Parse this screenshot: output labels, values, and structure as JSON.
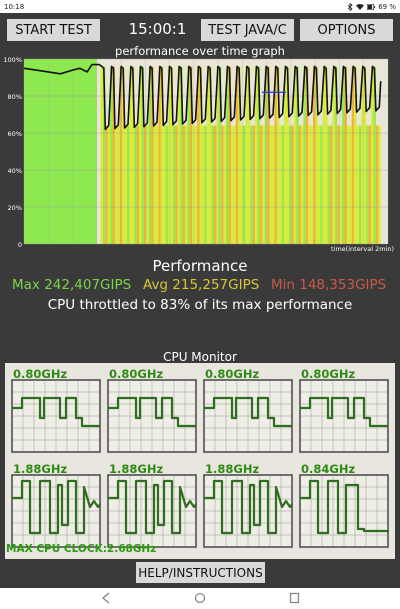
{
  "status_bar": {
    "time": "10:18",
    "battery": "69 %",
    "icons": [
      "bluetooth-icon",
      "wifi-icon",
      "battery-icon"
    ]
  },
  "toolbar": {
    "start_test_label": "START TEST",
    "timer": "15:00:1",
    "test_java_label": "TEST JAVA/C",
    "options_label": "OPTIONS"
  },
  "graph": {
    "title": "performance over time graph",
    "y_ticks": [
      "100%",
      "80%",
      "60%",
      "40%",
      "20%",
      "0"
    ],
    "x_caption": "time(interval 2min)"
  },
  "chart_data": {
    "type": "line",
    "title": "performance over time graph",
    "xlabel": "time(interval 2min)",
    "ylabel": "",
    "ylim": [
      0,
      100
    ],
    "grid": true,
    "x_range": [
      0,
      15
    ],
    "warm_phase_end": 3.0,
    "series": [
      {
        "x": [
          0,
          0.5,
          1.0,
          1.5,
          2.0,
          2.3,
          2.6,
          2.8,
          3.0,
          3.05,
          3.1
        ],
        "y": [
          95,
          94,
          93,
          92,
          94,
          95,
          93,
          97,
          97,
          97,
          97
        ]
      }
    ],
    "throttle_cycles": {
      "start": 3.15,
      "end": 14.7,
      "count": 29,
      "high": 96,
      "low": 62,
      "low_end": 72
    },
    "colors": {
      "plot_bg": "#e9e6d9",
      "warm_green": "#8ee84f",
      "stripe_yellow": "#d8ec3a",
      "stripe_orange": "#f0b43a",
      "stripe_green": "#9be84a",
      "line": "#111111",
      "blue_marker": "#3344dd"
    }
  },
  "performance": {
    "heading": "Performance",
    "max": "Max 242,407GIPS",
    "avg": "Avg 215,257GIPS",
    "min": "Min 148,353GIPS",
    "throttle_text": "CPU throttled to 83% of its max performance",
    "colors": {
      "max": "#7bd44a",
      "avg": "#d5c735",
      "min": "#c85a48"
    }
  },
  "cpu_monitor": {
    "title": "CPU Monitor",
    "cores": [
      {
        "freq": "0.80GHz",
        "pattern": "low"
      },
      {
        "freq": "0.80GHz",
        "pattern": "low"
      },
      {
        "freq": "0.80GHz",
        "pattern": "low"
      },
      {
        "freq": "0.80GHz",
        "pattern": "low"
      },
      {
        "freq": "1.88GHz",
        "pattern": "high"
      },
      {
        "freq": "1.88GHz",
        "pattern": "high"
      },
      {
        "freq": "1.88GHz",
        "pattern": "high"
      },
      {
        "freq": "0.84GHz",
        "pattern": "high-drop"
      }
    ],
    "max_clock": "MAX CPU CLOCK:2.68GHz"
  },
  "help_label": "HELP/INSTRUCTIONS",
  "nav": {
    "icons": [
      "back-icon",
      "home-icon",
      "recents-icon"
    ]
  }
}
